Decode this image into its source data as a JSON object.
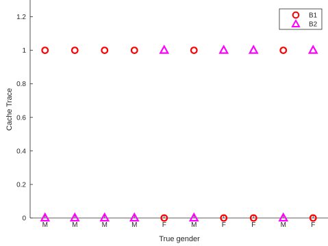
{
  "chart_data": {
    "type": "scatter",
    "title": "",
    "xlabel": "True gender",
    "ylabel": "Cache Trace",
    "xlim": [
      0.5,
      10.5
    ],
    "ylim": [
      0,
      1.3
    ],
    "yticks": [
      0,
      0.2,
      0.4,
      0.6,
      0.8,
      1,
      1.2
    ],
    "x": [
      1,
      2,
      3,
      4,
      5,
      6,
      7,
      8,
      9,
      10
    ],
    "categories": [
      "M",
      "M",
      "M",
      "M",
      "F",
      "M",
      "F",
      "F",
      "M",
      "F"
    ],
    "grid": false,
    "legend_position": "top-right",
    "series": [
      {
        "name": "B1",
        "marker": "circle",
        "color": "#ff0000",
        "values": [
          1,
          1,
          1,
          1,
          0,
          1,
          0,
          0,
          1,
          0
        ]
      },
      {
        "name": "B2",
        "marker": "triangle",
        "color": "#ff00ff",
        "values": [
          0,
          0,
          0,
          0,
          1,
          0,
          1,
          1,
          0,
          1
        ]
      }
    ]
  }
}
